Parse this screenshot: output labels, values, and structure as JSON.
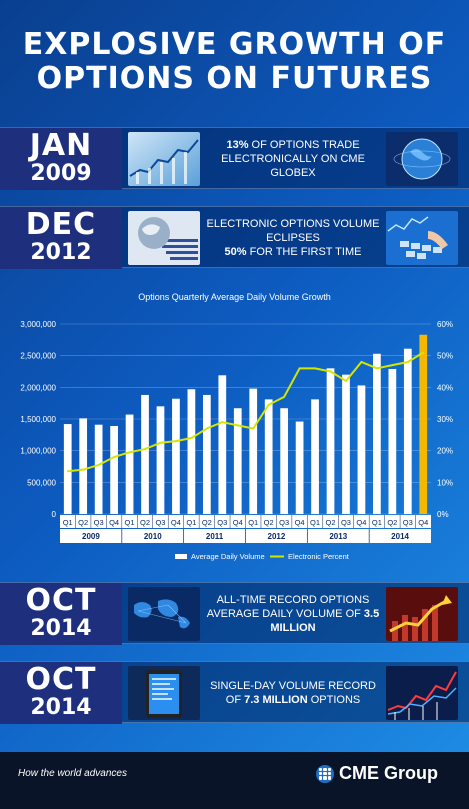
{
  "title": {
    "line1": "EXPLOSIVE GROWTH OF",
    "line2": "OPTIONS ON FUTURES"
  },
  "milestones": [
    {
      "month": "JAN",
      "year": "2009",
      "left_image": "stock-chart-image",
      "right_image": "globe-image",
      "text_bold_prefix": "13%",
      "text_rest": " OF OPTIONS TRADE ELECTRONICALLY ON CME GLOBEX",
      "text_before_bold": "",
      "text_after_bold": ""
    },
    {
      "month": "DEC",
      "year": "2012",
      "left_image": "globe-circuit-image",
      "right_image": "keyboard-image",
      "text_before_bold": "ELECTRONIC OPTIONS VOLUME ECLIPSES",
      "text_bold": "50%",
      "text_after_bold": " FOR THE FIRST TIME"
    },
    {
      "month": "OCT",
      "year": "2014",
      "left_image": "world-map-image",
      "right_image": "rising-arrow-image",
      "text_before_bold": "ALL-TIME RECORD OPTIONS AVERAGE DAILY VOLUME OF",
      "text_bold": "3.5 MILLION",
      "text_after_bold": ""
    },
    {
      "month": "OCT",
      "year": "2014",
      "left_image": "smartphone-image",
      "right_image": "market-chart-image",
      "text_before_bold": "SINGLE-DAY VOLUME RECORD OF",
      "text_bold": "7.3 MILLION",
      "text_after_bold": " OPTIONS"
    }
  ],
  "colors": {
    "bar": "#ffffff",
    "bar_highlight": "#f5b800",
    "line": "#d4e600",
    "date_box": "#1d2f7d"
  },
  "chart_data": {
    "type": "bar",
    "title": "Options Quarterly Average Daily Volume Growth",
    "categories": [
      "Q1",
      "Q2",
      "Q3",
      "Q4",
      "Q1",
      "Q2",
      "Q3",
      "Q4",
      "Q1",
      "Q2",
      "Q3",
      "Q4",
      "Q1",
      "Q2",
      "Q3",
      "Q4",
      "Q1",
      "Q2",
      "Q3",
      "Q4",
      "Q1",
      "Q2",
      "Q3",
      "Q4"
    ],
    "years": [
      {
        "label": "2009",
        "start": 0,
        "count": 4
      },
      {
        "label": "2010",
        "start": 4,
        "count": 4
      },
      {
        "label": "2011",
        "start": 8,
        "count": 4
      },
      {
        "label": "2012",
        "start": 12,
        "count": 4
      },
      {
        "label": "2013",
        "start": 16,
        "count": 4
      },
      {
        "label": "2014",
        "start": 20,
        "count": 4
      }
    ],
    "series": [
      {
        "name": "Average Daily Volume",
        "type": "bar",
        "axis": "left",
        "values": [
          1420000,
          1510000,
          1410000,
          1390000,
          1570000,
          1880000,
          1700000,
          1820000,
          1970000,
          1880000,
          2190000,
          1670000,
          1980000,
          1810000,
          1670000,
          1460000,
          1810000,
          2300000,
          2200000,
          2030000,
          2530000,
          2290000,
          2610000,
          2830000
        ],
        "highlight_index": 23
      },
      {
        "name": "Electronic Percent",
        "type": "line",
        "axis": "right",
        "values": [
          13.5,
          14.0,
          15.5,
          18.0,
          19.5,
          20.5,
          22.5,
          23.0,
          24.0,
          27.0,
          29.0,
          28.0,
          27.0,
          34.5,
          37.0,
          46.0,
          46.0,
          45.0,
          42.0,
          48.0,
          46.0,
          47.0,
          48.0,
          51.0
        ]
      }
    ],
    "y_left": {
      "min": 0,
      "max": 3000000,
      "ticks": [
        "0",
        "500,000",
        "1,000,000",
        "1,500,000",
        "2,000,000",
        "2,500,000",
        "3,000,000"
      ]
    },
    "y_right": {
      "min": 0,
      "max": 60,
      "ticks": [
        "0%",
        "10%",
        "20%",
        "30%",
        "40%",
        "50%",
        "60%"
      ]
    },
    "legend_position": "bottom"
  },
  "footer": {
    "tagline": "How the world advances",
    "logo_text": "CME Group",
    "logo_icon": "cme-globe-icon"
  }
}
